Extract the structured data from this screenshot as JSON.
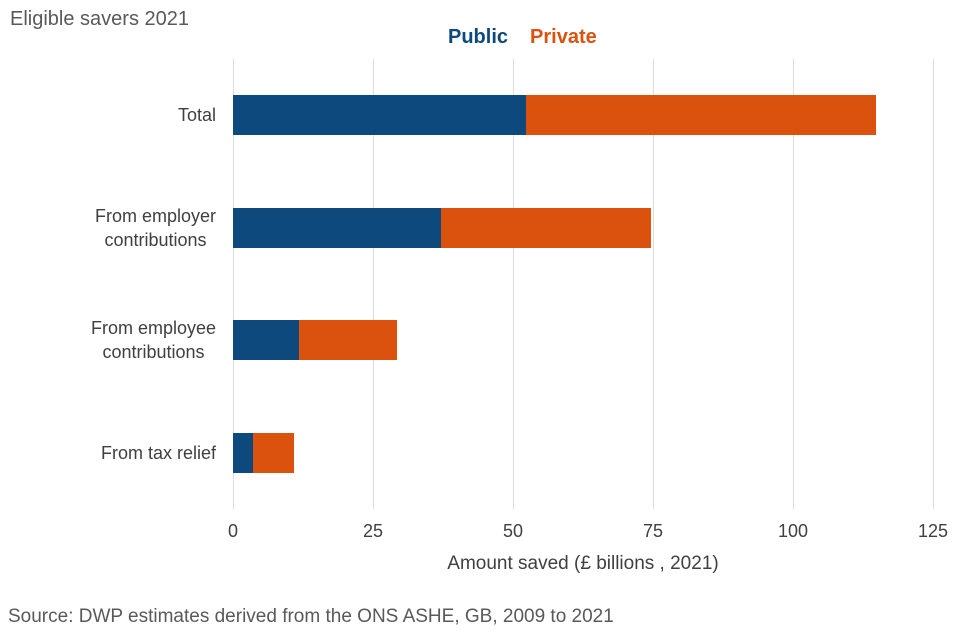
{
  "title": "Eligible savers 2021",
  "legend": {
    "items": [
      {
        "label": "Public",
        "color": "#0d497c"
      },
      {
        "label": "Private",
        "color": "#da520d"
      }
    ]
  },
  "source": "Source: DWP estimates derived from the ONS ASHE, GB, 2009 to 2021",
  "chart_data": {
    "type": "bar",
    "orientation": "horizontal",
    "stacked": true,
    "title": "Eligible savers 2021",
    "categories": [
      "Total",
      "From employer\ncontributions",
      "From employee\ncontributions",
      "From tax relief"
    ],
    "series": [
      {
        "name": "Public",
        "color": "#0d497c",
        "values": [
          52.4,
          37.1,
          11.7,
          3.6
        ]
      },
      {
        "name": "Private",
        "color": "#da520d",
        "values": [
          62.4,
          37.6,
          17.5,
          7.3
        ]
      }
    ],
    "xlabel": "Amount saved (£ billions , 2021)",
    "ylabel": "",
    "xlim": [
      0,
      125
    ],
    "xticks": [
      0,
      25,
      50,
      75,
      100,
      125
    ],
    "grid": true,
    "gridline_color": "#dcdcdc",
    "legend_position": "top"
  }
}
